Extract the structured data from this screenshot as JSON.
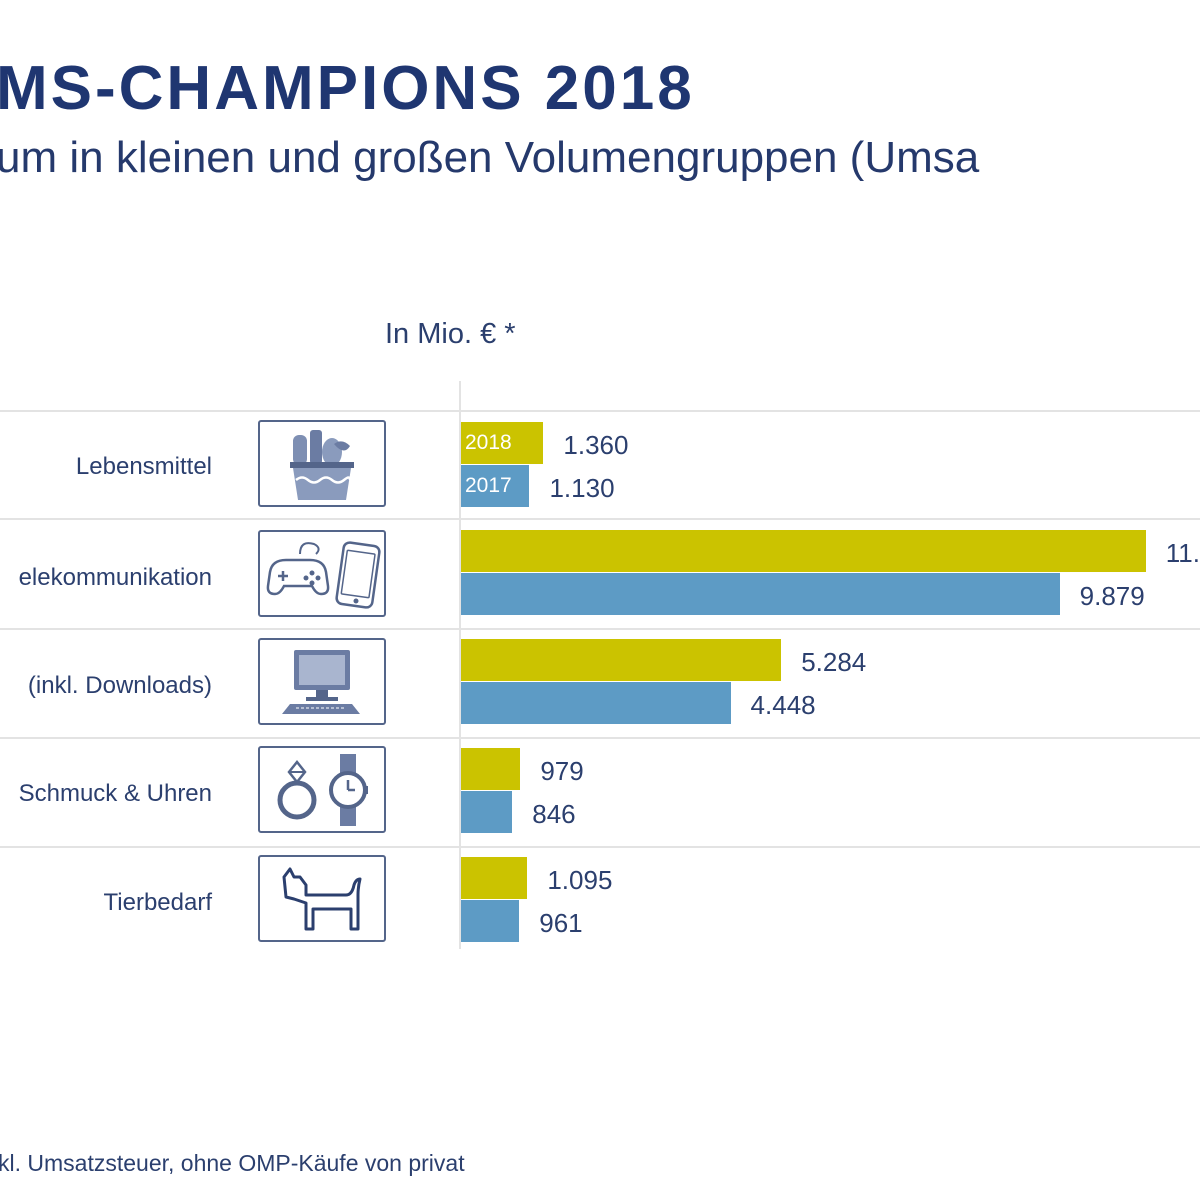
{
  "header": {
    "title": "MS-CHAMPIONS 2018",
    "subtitle": "um in kleinen und großen Volumengruppen (Umsa"
  },
  "unit_label": "In Mio. € *",
  "footnote": "kl. Umsatzsteuer, ohne OMP-Käufe von privat",
  "colors": {
    "y2018": "#cbc300",
    "y2017": "#5d9bc5",
    "text": "#2b3f6e"
  },
  "chart_data": {
    "type": "bar",
    "orientation": "horizontal",
    "categories": [
      "Lebensmittel",
      "elekommunikation",
      "(inkl. Downloads)",
      "Schmuck & Uhren",
      "Tierbedarf"
    ],
    "icons": [
      "grocery-basket-icon",
      "gamepad-smartphone-icon",
      "computer-icon",
      "ring-watch-icon",
      "dog-icon"
    ],
    "series": [
      {
        "name": "2018",
        "values": [
          1360,
          11300,
          5284,
          979,
          1095
        ],
        "labels": [
          "1.360",
          "11.",
          "5.284",
          "979",
          "1.095"
        ]
      },
      {
        "name": "2017",
        "values": [
          1130,
          9879,
          4448,
          846,
          961
        ],
        "labels": [
          "1.130",
          "9.879",
          "4.448",
          "846",
          "961"
        ]
      }
    ],
    "xlim": [
      0,
      14000
    ],
    "grid": false
  }
}
